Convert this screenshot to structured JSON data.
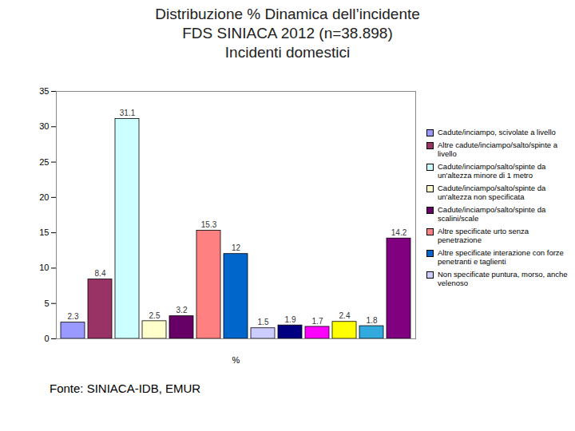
{
  "chart_data": {
    "type": "bar",
    "title": "Distribuzione % Dinamica dell’incidente\nFDS SINIACA 2012 (n=38.898)\nIncidenti domestici",
    "x_label": "%",
    "source": "Fonte: SINIACA-IDB, EMUR",
    "categories": [
      "Cadute/inciampo, scivolate a livello",
      "Altre cadute/inciampo/salto/spinte a livello",
      "Cadute/inciampo/salto/spinte da un'altezza minore di 1 metro",
      "Cadute/inciampo/salto/spinte da un'altezza non specificata",
      "Cadute/inciampo/salto/spinte da scalini/scale",
      "Altre specificate urto senza penetrazione",
      "Altre specificate interazione con forze penetranti e taglienti",
      "Non specificate puntura, morso, anche velenoso",
      null,
      null,
      null,
      null,
      null
    ],
    "values": [
      2.3,
      8.4,
      31.1,
      2.5,
      3.2,
      15.3,
      12,
      1.5,
      1.9,
      1.7,
      2.4,
      1.8,
      14.2
    ],
    "colors": [
      "#9999ff",
      "#993366",
      "#ccffff",
      "#ffffcc",
      "#660066",
      "#ff8080",
      "#0066cc",
      "#ccccff",
      "#000080",
      "#ff00ff",
      "#ffff00",
      "#33aadd",
      "#800080"
    ],
    "ylim": [
      0,
      35
    ],
    "yticks": [
      0,
      5,
      10,
      15,
      20,
      25,
      30,
      35
    ],
    "grid": false,
    "legend": "right",
    "data_labels": true,
    "tick_labels": "y"
  }
}
